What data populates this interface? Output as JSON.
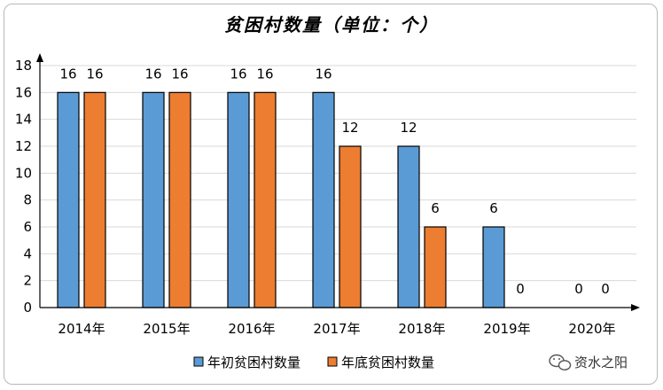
{
  "chart_data": {
    "type": "bar",
    "title": "贫困村数量（单位：个）",
    "categories": [
      "2014年",
      "2015年",
      "2016年",
      "2017年",
      "2018年",
      "2019年",
      "2020年"
    ],
    "series": [
      {
        "name": "年初贫困村数量",
        "color": "#5b9bd5",
        "values": [
          16,
          16,
          16,
          16,
          12,
          6,
          0
        ]
      },
      {
        "name": "年底贫困村数量",
        "color": "#ed7d31",
        "values": [
          16,
          16,
          16,
          12,
          6,
          0,
          0
        ]
      }
    ],
    "ylim": [
      0,
      18
    ],
    "yticks": [
      0,
      2,
      4,
      6,
      8,
      10,
      12,
      14,
      16,
      18
    ],
    "grid": true,
    "legend": "bottom"
  },
  "watermark": {
    "text": "资水之阳",
    "icon": "wechat-icon"
  }
}
